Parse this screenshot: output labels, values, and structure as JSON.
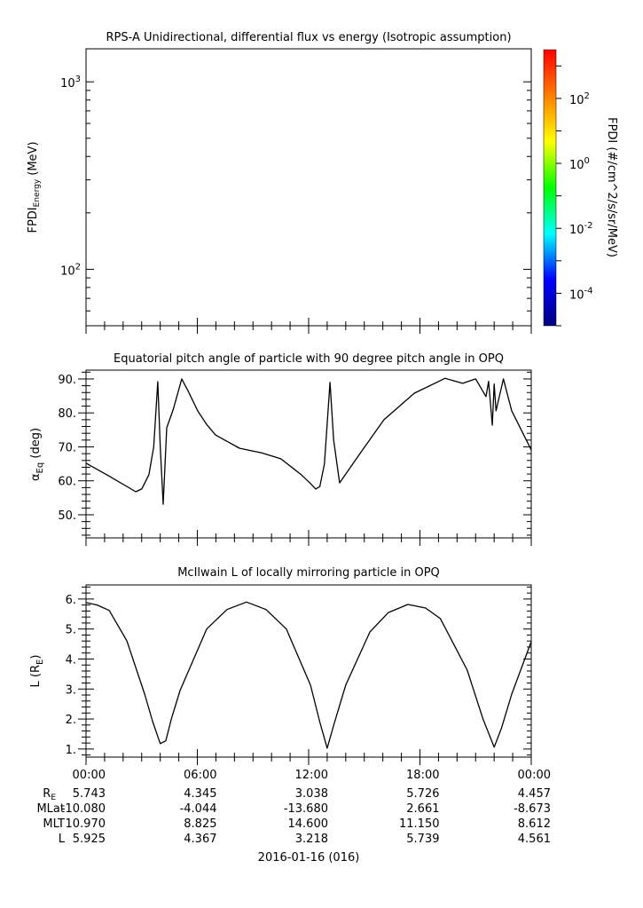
{
  "chart_data": [
    {
      "type": "heatmap",
      "title": "RPS-A Unidirectional, differential flux vs energy (Isotropic assumption)",
      "ylabel_main": "FPDI",
      "ylabel_sub": "Energy",
      "ylabel_unit": " (MeV)",
      "yscale": "log",
      "ylim": [
        50,
        1500
      ],
      "yticks": [
        {
          "base": "10",
          "exp": "3",
          "value": 1000
        },
        {
          "base": "10",
          "exp": "2",
          "value": 100
        }
      ],
      "xlim_hours": [
        0,
        24
      ],
      "values": [],
      "colorbar": {
        "label": "FPDI (#/cm^2/s/sr/MeV)",
        "log_range": [
          -5,
          3.5
        ],
        "ticks": [
          {
            "base": "10",
            "exp": "2",
            "value": 2
          },
          {
            "base": "10",
            "exp": "0",
            "value": 0
          },
          {
            "base": "10",
            "exp": "-2",
            "value": -2
          },
          {
            "base": "10",
            "exp": "-4",
            "value": -4
          }
        ],
        "colors": [
          "#00007f",
          "#0000ff",
          "#00ffff",
          "#00ff00",
          "#ffff00",
          "#ff7f00",
          "#ff0000"
        ]
      }
    },
    {
      "type": "line",
      "title": "Equatorial pitch angle of particle with 90 degree pitch angle in OPQ",
      "ylabel_main": "α",
      "ylabel_sub": "Eq",
      "ylabel_unit": " (deg)",
      "ylim": [
        43.2,
        92.6
      ],
      "yticks": [
        {
          "label": "90.",
          "value": 90
        },
        {
          "label": "80.",
          "value": 80
        },
        {
          "label": "70.",
          "value": 70
        },
        {
          "label": "60.",
          "value": 60
        },
        {
          "label": "50.",
          "value": 50
        }
      ],
      "xlim_hours": [
        0,
        24
      ],
      "x": [
        0,
        1.3,
        2.68,
        3.0,
        3.39,
        3.65,
        3.87,
        4.0,
        4.16,
        4.35,
        4.7,
        5.16,
        5.5,
        6.02,
        6.5,
        6.98,
        8.27,
        9.5,
        10.5,
        11.2,
        11.6,
        12.1,
        12.38,
        12.6,
        12.85,
        13.15,
        13.35,
        13.67,
        14.8,
        16.06,
        17.7,
        19.36,
        20.3,
        21.0,
        21.56,
        21.7,
        21.9,
        22.0,
        22.1,
        22.5,
        22.95,
        24
      ],
      "y": [
        65.2,
        61.2,
        56.8,
        57.6,
        61.8,
        70,
        89.2,
        70,
        53.1,
        75.6,
        81,
        90,
        86.5,
        80.6,
        76.6,
        73.5,
        69.6,
        68.2,
        66.5,
        63.5,
        61.8,
        59.2,
        57.6,
        58.3,
        65,
        89,
        72,
        59.4,
        68.3,
        78,
        85.8,
        90.2,
        88.7,
        90,
        84.8,
        89.3,
        76.4,
        88.5,
        80.6,
        90,
        80.6,
        69.1
      ]
    },
    {
      "type": "line",
      "title": "McIlwain L of locally mirroring particle in OPQ",
      "ylabel_main": "L (R",
      "ylabel_sub": "E",
      "ylabel_unit": ")",
      "ylim": [
        0.73,
        6.47
      ],
      "yticks": [
        {
          "label": "6.",
          "value": 6
        },
        {
          "label": "5.",
          "value": 5
        },
        {
          "label": "4.",
          "value": 4
        },
        {
          "label": "3.",
          "value": 3
        },
        {
          "label": "2.",
          "value": 2
        },
        {
          "label": "1.",
          "value": 1
        }
      ],
      "xlim_hours": [
        0,
        24
      ],
      "x": [
        0,
        0.6,
        1.25,
        2.2,
        3.16,
        3.6,
        4.0,
        4.3,
        4.6,
        5.07,
        6.5,
        7.6,
        8.65,
        9.7,
        10.8,
        12.1,
        12.6,
        13.0,
        13.4,
        14.0,
        15.3,
        16.3,
        17.35,
        18.3,
        19.1,
        20.55,
        21.4,
        22.0,
        22.4,
        22.95,
        24
      ],
      "y": [
        5.88,
        5.8,
        5.62,
        4.61,
        2.83,
        1.9,
        1.18,
        1.27,
        2.0,
        2.95,
        5.0,
        5.65,
        5.9,
        5.65,
        5.0,
        3.13,
        1.9,
        1.03,
        1.9,
        3.13,
        4.9,
        5.55,
        5.82,
        5.7,
        5.35,
        3.63,
        2.0,
        1.06,
        1.7,
        2.83,
        4.58
      ]
    }
  ],
  "xaxis": {
    "ticks": [
      "00:00",
      "06:00",
      "12:00",
      "18:00",
      "00:00"
    ],
    "rows": [
      {
        "label": "R",
        "label_sub": "E",
        "values": [
          "5.743",
          "4.345",
          "3.038",
          "5.726",
          "4.457"
        ]
      },
      {
        "label": "MLat",
        "label_sub": "",
        "values": [
          "-10.080",
          "-4.044",
          "-13.680",
          "2.661",
          "-8.673"
        ]
      },
      {
        "label": "MLT",
        "label_sub": "",
        "values": [
          "10.970",
          "8.825",
          "14.600",
          "11.150",
          "8.612"
        ]
      },
      {
        "label": "L",
        "label_sub": "",
        "values": [
          "5.925",
          "4.367",
          "3.218",
          "5.739",
          "4.561"
        ]
      }
    ],
    "date": "2016-01-16 (016)"
  }
}
